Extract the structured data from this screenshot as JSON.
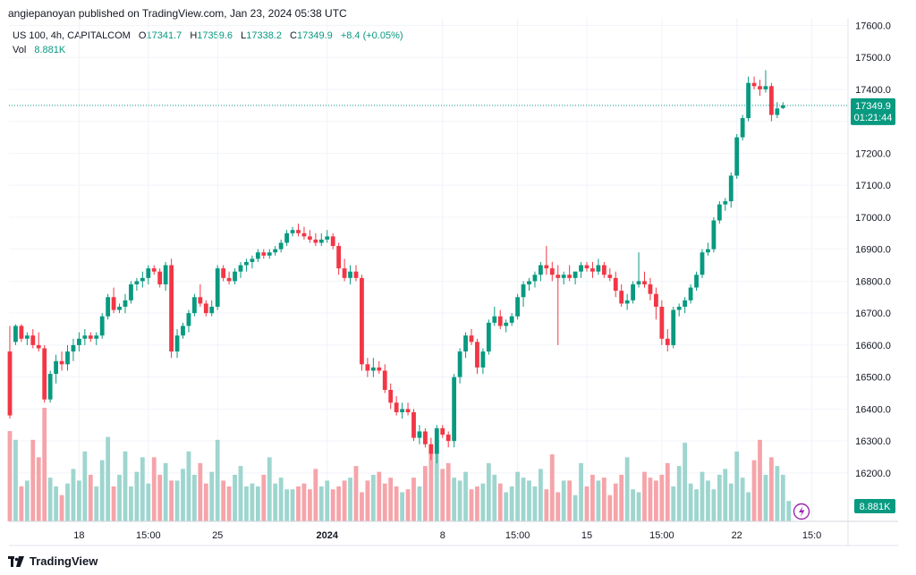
{
  "header": {
    "publish_line": "angiepanoyan published on TradingView.com, Jan 23, 2024 05:38 UTC"
  },
  "legend": {
    "symbol": "US 100, 4h, CAPITALCOM",
    "o_label": "O",
    "o_value": "17341.7",
    "h_label": "H",
    "h_value": "17359.6",
    "l_label": "L",
    "l_value": "17338.2",
    "c_label": "C",
    "c_value": "17349.9",
    "change": "+8.4 (+0.05%)",
    "vol_label": "Vol",
    "vol_value": "8.881K"
  },
  "price_tag": {
    "price": "17349.9",
    "countdown": "01:21:44"
  },
  "volume_tag": "8.881K",
  "brand": "TradingView",
  "colors": {
    "up": "#089981",
    "down": "#f23645",
    "vol_up": "#9ed6cf",
    "vol_down": "#f5a5aa",
    "grid": "#f0f3fa",
    "price_tag": "#089981",
    "flash_icon": "#9c27b0"
  },
  "icons": {
    "flash": "lightning-icon",
    "logo": "tradingview-logo-icon"
  },
  "chart_data": {
    "type": "candlestick",
    "title": "US 100, 4h, CAPITALCOM",
    "y_ticks": [
      16200,
      16300,
      16400,
      16500,
      16600,
      16700,
      16800,
      16900,
      17000,
      17100,
      17200,
      17300,
      17400,
      17500,
      17600
    ],
    "y_tick_labels": [
      "16200.0",
      "16300.0",
      "16400.0",
      "16500.0",
      "16600.0",
      "16700.0",
      "16800.0",
      "16900.0",
      "17000.0",
      "17100.0",
      "17200.0",
      "17300.0",
      "17400.0",
      "17500.0",
      "17600.0"
    ],
    "ylim": [
      16105,
      17610
    ],
    "x_tick_labels": [
      {
        "label": "18",
        "index": 12
      },
      {
        "label": "15:00",
        "index": 24
      },
      {
        "label": "25",
        "index": 36
      },
      {
        "label": "2024",
        "index": 55,
        "bold": true
      },
      {
        "label": "8",
        "index": 75
      },
      {
        "label": "15:00",
        "index": 88
      },
      {
        "label": "15",
        "index": 100
      },
      {
        "label": "15:00",
        "index": 113
      },
      {
        "label": "22",
        "index": 126
      },
      {
        "label": "15:0",
        "index": 139
      }
    ],
    "current_price": 17349.9,
    "candles": [
      [
        16580,
        16660,
        16370,
        16380
      ],
      [
        16610,
        16665,
        16600,
        16660
      ],
      [
        16660,
        16665,
        16610,
        16620
      ],
      [
        16620,
        16640,
        16600,
        16630
      ],
      [
        16630,
        16650,
        16590,
        16600
      ],
      [
        16600,
        16640,
        16580,
        16590
      ],
      [
        16590,
        16600,
        16420,
        16430
      ],
      [
        16430,
        16520,
        16420,
        16510
      ],
      [
        16510,
        16570,
        16480,
        16550
      ],
      [
        16550,
        16580,
        16520,
        16540
      ],
      [
        16540,
        16600,
        16520,
        16580
      ],
      [
        16580,
        16620,
        16550,
        16600
      ],
      [
        16600,
        16640,
        16580,
        16620
      ],
      [
        16620,
        16650,
        16600,
        16630
      ],
      [
        16630,
        16640,
        16610,
        16620
      ],
      [
        16620,
        16640,
        16600,
        16630
      ],
      [
        16630,
        16700,
        16620,
        16690
      ],
      [
        16690,
        16760,
        16680,
        16750
      ],
      [
        16750,
        16780,
        16700,
        16710
      ],
      [
        16710,
        16730,
        16700,
        16720
      ],
      [
        16720,
        16760,
        16700,
        16740
      ],
      [
        16740,
        16800,
        16730,
        16790
      ],
      [
        16790,
        16810,
        16770,
        16800
      ],
      [
        16800,
        16830,
        16780,
        16810
      ],
      [
        16810,
        16850,
        16790,
        16840
      ],
      [
        16840,
        16850,
        16820,
        16830
      ],
      [
        16830,
        16840,
        16780,
        16790
      ],
      [
        16790,
        16860,
        16770,
        16850
      ],
      [
        16850,
        16870,
        16560,
        16580
      ],
      [
        16580,
        16650,
        16560,
        16630
      ],
      [
        16630,
        16670,
        16620,
        16660
      ],
      [
        16660,
        16710,
        16640,
        16700
      ],
      [
        16700,
        16760,
        16690,
        16750
      ],
      [
        16750,
        16790,
        16720,
        16730
      ],
      [
        16730,
        16740,
        16690,
        16700
      ],
      [
        16700,
        16740,
        16690,
        16720
      ],
      [
        16720,
        16850,
        16710,
        16840
      ],
      [
        16840,
        16850,
        16800,
        16810
      ],
      [
        16810,
        16830,
        16790,
        16800
      ],
      [
        16800,
        16840,
        16790,
        16830
      ],
      [
        16830,
        16860,
        16810,
        16850
      ],
      [
        16850,
        16870,
        16830,
        16860
      ],
      [
        16860,
        16880,
        16840,
        16870
      ],
      [
        16870,
        16900,
        16860,
        16890
      ],
      [
        16890,
        16900,
        16870,
        16880
      ],
      [
        16880,
        16900,
        16870,
        16890
      ],
      [
        16890,
        16910,
        16880,
        16900
      ],
      [
        16900,
        16930,
        16890,
        16920
      ],
      [
        16920,
        16960,
        16910,
        16950
      ],
      [
        16950,
        16970,
        16940,
        16960
      ],
      [
        16960,
        16980,
        16940,
        16950
      ],
      [
        16950,
        16970,
        16930,
        16940
      ],
      [
        16940,
        16960,
        16920,
        16930
      ],
      [
        16930,
        16950,
        16910,
        16920
      ],
      [
        16920,
        16950,
        16910,
        16930
      ],
      [
        16930,
        16960,
        16920,
        16940
      ],
      [
        16940,
        16950,
        16900,
        16910
      ],
      [
        16910,
        16920,
        16820,
        16840
      ],
      [
        16840,
        16870,
        16800,
        16810
      ],
      [
        16810,
        16850,
        16790,
        16830
      ],
      [
        16830,
        16850,
        16800,
        16810
      ],
      [
        16810,
        16820,
        16520,
        16540
      ],
      [
        16540,
        16560,
        16500,
        16520
      ],
      [
        16520,
        16560,
        16500,
        16530
      ],
      [
        16530,
        16550,
        16510,
        16520
      ],
      [
        16520,
        16540,
        16450,
        16460
      ],
      [
        16460,
        16480,
        16400,
        16420
      ],
      [
        16420,
        16440,
        16380,
        16390
      ],
      [
        16390,
        16420,
        16370,
        16400
      ],
      [
        16400,
        16420,
        16380,
        16390
      ],
      [
        16390,
        16400,
        16300,
        16310
      ],
      [
        16310,
        16350,
        16290,
        16330
      ],
      [
        16330,
        16340,
        16280,
        16290
      ],
      [
        16290,
        16310,
        16240,
        16260
      ],
      [
        16260,
        16350,
        16230,
        16340
      ],
      [
        16340,
        16350,
        16310,
        16320
      ],
      [
        16320,
        16330,
        16280,
        16300
      ],
      [
        16300,
        16510,
        16280,
        16500
      ],
      [
        16500,
        16590,
        16480,
        16580
      ],
      [
        16580,
        16640,
        16560,
        16630
      ],
      [
        16630,
        16650,
        16600,
        16610
      ],
      [
        16610,
        16620,
        16510,
        16530
      ],
      [
        16530,
        16590,
        16510,
        16580
      ],
      [
        16580,
        16680,
        16570,
        16670
      ],
      [
        16670,
        16720,
        16660,
        16690
      ],
      [
        16690,
        16710,
        16650,
        16660
      ],
      [
        16660,
        16680,
        16640,
        16670
      ],
      [
        16670,
        16700,
        16660,
        16690
      ],
      [
        16690,
        16760,
        16680,
        16750
      ],
      [
        16750,
        16800,
        16720,
        16790
      ],
      [
        16790,
        16810,
        16770,
        16800
      ],
      [
        16800,
        16830,
        16780,
        16820
      ],
      [
        16820,
        16860,
        16800,
        16850
      ],
      [
        16850,
        16910,
        16820,
        16840
      ],
      [
        16840,
        16860,
        16800,
        16820
      ],
      [
        16820,
        16850,
        16600,
        16810
      ],
      [
        16810,
        16830,
        16790,
        16820
      ],
      [
        16820,
        16850,
        16800,
        16810
      ],
      [
        16810,
        16830,
        16790,
        16830
      ],
      [
        16830,
        16860,
        16810,
        16850
      ],
      [
        16850,
        16860,
        16830,
        16840
      ],
      [
        16840,
        16860,
        16810,
        16830
      ],
      [
        16830,
        16870,
        16820,
        16850
      ],
      [
        16850,
        16860,
        16810,
        16820
      ],
      [
        16820,
        16840,
        16800,
        16810
      ],
      [
        16810,
        16830,
        16750,
        16770
      ],
      [
        16770,
        16790,
        16720,
        16730
      ],
      [
        16730,
        16760,
        16710,
        16740
      ],
      [
        16740,
        16800,
        16730,
        16790
      ],
      [
        16790,
        16890,
        16780,
        16800
      ],
      [
        16800,
        16830,
        16780,
        16790
      ],
      [
        16790,
        16810,
        16740,
        16760
      ],
      [
        16760,
        16780,
        16680,
        16720
      ],
      [
        16720,
        16740,
        16600,
        16620
      ],
      [
        16620,
        16650,
        16580,
        16600
      ],
      [
        16600,
        16720,
        16590,
        16710
      ],
      [
        16710,
        16730,
        16690,
        16720
      ],
      [
        16720,
        16750,
        16700,
        16740
      ],
      [
        16740,
        16790,
        16730,
        16780
      ],
      [
        16780,
        16830,
        16770,
        16820
      ],
      [
        16820,
        16900,
        16810,
        16890
      ],
      [
        16890,
        16920,
        16880,
        16900
      ],
      [
        16900,
        17000,
        16890,
        16990
      ],
      [
        16990,
        17050,
        16980,
        17040
      ],
      [
        17040,
        17060,
        17020,
        17050
      ],
      [
        17050,
        17140,
        17030,
        17130
      ],
      [
        17130,
        17260,
        17120,
        17250
      ],
      [
        17250,
        17320,
        17240,
        17310
      ],
      [
        17310,
        17440,
        17300,
        17420
      ],
      [
        17420,
        17440,
        17400,
        17410
      ],
      [
        17410,
        17430,
        17380,
        17400
      ],
      [
        17400,
        17460,
        17390,
        17410
      ],
      [
        17410,
        17420,
        17300,
        17320
      ],
      [
        17320,
        17360,
        17310,
        17340
      ],
      [
        17341.7,
        17359.6,
        17338.2,
        17349.9
      ]
    ],
    "volume_label": "Vol 8.881K",
    "volumes": [
      3.1,
      2.8,
      1.2,
      1.4,
      2.8,
      2.2,
      3.9,
      1.5,
      1.2,
      0.9,
      1.3,
      1.8,
      1.4,
      2.4,
      1.6,
      1.2,
      2.1,
      2.9,
      1.2,
      1.6,
      2.4,
      1.2,
      1.7,
      2.2,
      1.3,
      2.2,
      1.6,
      2.0,
      1.4,
      1.4,
      1.8,
      2.4,
      1.6,
      2.0,
      1.3,
      1.7,
      2.8,
      1.4,
      1.2,
      1.6,
      1.9,
      1.2,
      1.3,
      1.2,
      1.6,
      2.2,
      1.3,
      1.5,
      1.1,
      1.1,
      1.2,
      1.3,
      1.1,
      1.8,
      1.2,
      1.4,
      1.1,
      1.2,
      1.4,
      1.5,
      1.9,
      1.0,
      1.4,
      1.6,
      1.7,
      1.3,
      1.5,
      1.2,
      1.0,
      1.1,
      1.5,
      1.2,
      1.9,
      2.4,
      2.6,
      1.8,
      2.0,
      1.5,
      1.4,
      1.7,
      1.1,
      1.2,
      1.3,
      2.0,
      1.6,
      1.3,
      1.0,
      1.2,
      1.7,
      1.5,
      1.4,
      1.2,
      1.8,
      1.1,
      2.3,
      1.0,
      1.4,
      1.4,
      0.9,
      2.0,
      1.2,
      1.6,
      1.4,
      1.5,
      0.9,
      1.3,
      1.6,
      2.2,
      1.1,
      1.0,
      1.7,
      1.5,
      1.4,
      1.6,
      2.0,
      1.2,
      1.9,
      2.7,
      1.3,
      1.1,
      1.7,
      1.4,
      1.1,
      1.6,
      1.8,
      1.3,
      2.4,
      1.5,
      1.0,
      2.1,
      2.8,
      1.6,
      2.2,
      1.9,
      1.6,
      0.7
    ]
  }
}
